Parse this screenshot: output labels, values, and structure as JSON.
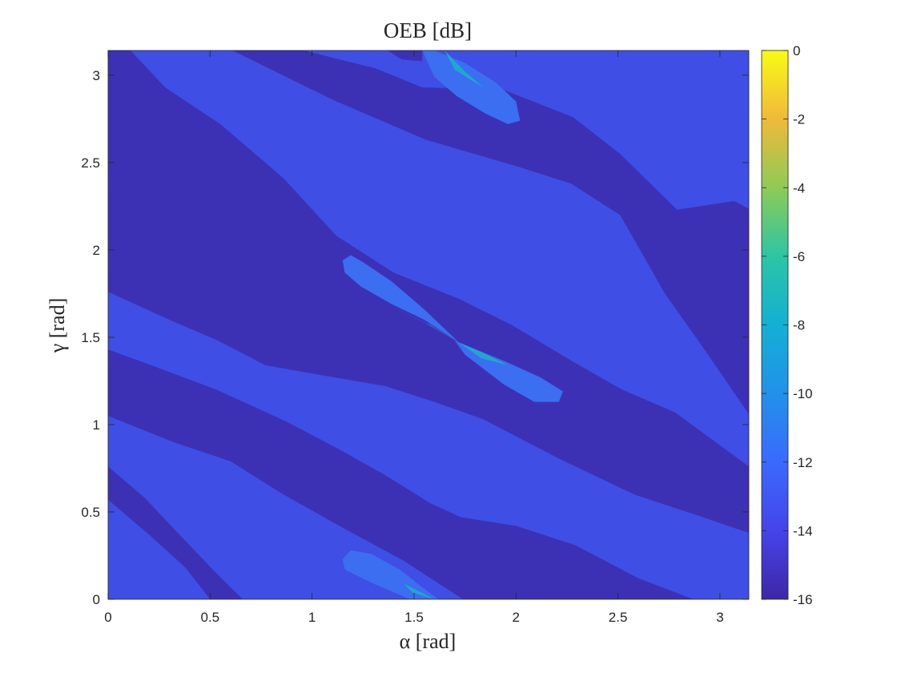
{
  "chart_data": {
    "type": "heatmap",
    "title": "OEB [dB]",
    "xlabel": "α [rad]",
    "ylabel": "γ [rad]",
    "xlim": [
      0,
      3.1416
    ],
    "ylim": [
      0,
      3.1416
    ],
    "x_ticks": [
      "0",
      "0.5",
      "1",
      "1.5",
      "2",
      "2.5",
      "3"
    ],
    "x_tick_values": [
      0,
      0.5,
      1,
      1.5,
      2,
      2.5,
      3
    ],
    "y_ticks": [
      "0",
      "0.5",
      "1",
      "1.5",
      "2",
      "2.5",
      "3"
    ],
    "y_tick_values": [
      0,
      0.5,
      1,
      1.5,
      2,
      2.5,
      3
    ],
    "colorbar": {
      "range": [
        -16,
        0
      ],
      "ticks": [
        "0",
        "-2",
        "-4",
        "-6",
        "-8",
        "-10",
        "-12",
        "-14",
        "-16"
      ],
      "tick_values": [
        0,
        -2,
        -4,
        -6,
        -8,
        -10,
        -12,
        -14,
        -16
      ],
      "colormap": "parula"
    },
    "levels": {
      "background": {
        "value": -15.8,
        "color": "#3c31b5"
      },
      "band": {
        "value": -13.8,
        "color": "#3f4ee4"
      },
      "lobe": {
        "value": -11.8,
        "color": "#3b6ef1"
      },
      "peak": {
        "value": -7.5,
        "color": "#1fa8ce"
      }
    },
    "regions": [
      {
        "level": "band",
        "points": [
          [
            0.11,
            3.1416
          ],
          [
            0.61,
            3.1416
          ],
          [
            1.1,
            2.86
          ],
          [
            1.56,
            2.63
          ],
          [
            2.0,
            2.48
          ],
          [
            2.27,
            2.38
          ],
          [
            2.51,
            2.2
          ],
          [
            2.73,
            1.75
          ],
          [
            2.93,
            1.42
          ],
          [
            3.1416,
            1.06
          ],
          [
            3.1416,
            0.76
          ],
          [
            2.78,
            1.07
          ],
          [
            2.52,
            1.2
          ],
          [
            2.28,
            1.36
          ],
          [
            1.98,
            1.57
          ],
          [
            1.72,
            1.72
          ],
          [
            1.4,
            1.87
          ],
          [
            1.12,
            2.08
          ],
          [
            0.86,
            2.41
          ],
          [
            0.55,
            2.72
          ],
          [
            0.28,
            2.93
          ]
        ]
      },
      {
        "level": "band",
        "points": [
          [
            0.96,
            3.1416
          ],
          [
            3.15,
            3.1416
          ],
          [
            3.15,
            2.23
          ],
          [
            3.07,
            2.28
          ],
          [
            2.79,
            2.23
          ],
          [
            2.51,
            2.55
          ],
          [
            2.28,
            2.76
          ],
          [
            1.93,
            2.92
          ],
          [
            1.54,
            2.93
          ],
          [
            1.31,
            3.04
          ]
        ]
      },
      {
        "level": "band",
        "points": [
          [
            0,
            1.43
          ],
          [
            0.21,
            1.34
          ],
          [
            0.53,
            1.2
          ],
          [
            0.87,
            1.02
          ],
          [
            1.13,
            0.86
          ],
          [
            1.36,
            0.71
          ],
          [
            1.58,
            0.55
          ],
          [
            1.73,
            0.47
          ],
          [
            2.0,
            0.42
          ],
          [
            2.29,
            0.31
          ],
          [
            2.6,
            0.12
          ],
          [
            2.87,
            0
          ],
          [
            3.1416,
            0
          ],
          [
            3.1416,
            0.38
          ],
          [
            2.89,
            0.48
          ],
          [
            2.58,
            0.6
          ],
          [
            2.22,
            0.8
          ],
          [
            1.84,
            1.03
          ],
          [
            1.6,
            1.13
          ],
          [
            1.36,
            1.22
          ],
          [
            1.06,
            1.28
          ],
          [
            0.77,
            1.34
          ],
          [
            0.54,
            1.48
          ],
          [
            0.3,
            1.6
          ],
          [
            0,
            1.76
          ]
        ]
      },
      {
        "level": "band",
        "points": [
          [
            0,
            0.76
          ],
          [
            0.18,
            0.58
          ],
          [
            0.35,
            0.37
          ],
          [
            0.53,
            0.15
          ],
          [
            0.66,
            0
          ],
          [
            1.74,
            0
          ],
          [
            1.45,
            0.22
          ],
          [
            1.15,
            0.41
          ],
          [
            0.86,
            0.6
          ],
          [
            0.6,
            0.79
          ],
          [
            0.32,
            0.9
          ],
          [
            0,
            1.05
          ]
        ]
      },
      {
        "level": "band",
        "points": [
          [
            0,
            0.57
          ],
          [
            0.21,
            0.36
          ],
          [
            0.38,
            0.18
          ],
          [
            0.5,
            0
          ],
          [
            0,
            0
          ]
        ]
      },
      {
        "level": "background",
        "points": [
          [
            1.37,
            3.1416
          ],
          [
            1.44,
            3.09
          ],
          [
            1.54,
            3.08
          ],
          [
            1.54,
            3.1416
          ]
        ]
      },
      {
        "level": "background",
        "points": [
          [
            1.69,
            1.66
          ],
          [
            1.66,
            1.64
          ],
          [
            1.61,
            1.56
          ],
          [
            1.63,
            1.52
          ],
          [
            1.69,
            1.47
          ],
          [
            1.74,
            1.48
          ],
          [
            1.79,
            1.53
          ],
          [
            1.77,
            1.61
          ]
        ]
      },
      {
        "level": "lobe",
        "points": [
          [
            1.6,
            3.1416
          ],
          [
            1.75,
            3.07
          ],
          [
            1.9,
            2.96
          ],
          [
            2.0,
            2.85
          ],
          [
            2.02,
            2.74
          ],
          [
            1.96,
            2.72
          ],
          [
            1.85,
            2.78
          ],
          [
            1.71,
            2.88
          ],
          [
            1.6,
            2.99
          ],
          [
            1.54,
            3.1416
          ]
        ]
      },
      {
        "level": "lobe",
        "points": [
          [
            1.15,
            1.94
          ],
          [
            1.19,
            1.97
          ],
          [
            1.25,
            1.93
          ],
          [
            1.39,
            1.82
          ],
          [
            1.55,
            1.66
          ],
          [
            1.72,
            1.47
          ],
          [
            1.55,
            1.6
          ],
          [
            1.39,
            1.69
          ],
          [
            1.24,
            1.79
          ],
          [
            1.16,
            1.87
          ]
        ]
      },
      {
        "level": "lobe",
        "points": [
          [
            1.7,
            1.48
          ],
          [
            1.95,
            1.36
          ],
          [
            2.12,
            1.27
          ],
          [
            2.23,
            1.19
          ],
          [
            2.21,
            1.13
          ],
          [
            2.09,
            1.13
          ],
          [
            1.94,
            1.23
          ],
          [
            1.75,
            1.4
          ]
        ]
      },
      {
        "level": "lobe",
        "points": [
          [
            1.15,
            0.23
          ],
          [
            1.19,
            0.28
          ],
          [
            1.29,
            0.26
          ],
          [
            1.43,
            0.17
          ],
          [
            1.55,
            0.06
          ],
          [
            1.62,
            0
          ],
          [
            1.48,
            0
          ],
          [
            1.3,
            0.09
          ],
          [
            1.16,
            0.17
          ]
        ]
      },
      {
        "level": "peak",
        "points": [
          [
            1.4,
            1.67
          ],
          [
            1.58,
            1.57
          ],
          [
            1.72,
            1.47
          ],
          [
            1.56,
            1.58
          ]
        ]
      },
      {
        "level": "peak",
        "points": [
          [
            1.72,
            1.47
          ],
          [
            1.84,
            1.41
          ],
          [
            1.96,
            1.34
          ],
          [
            1.83,
            1.38
          ]
        ]
      },
      {
        "level": "peak",
        "points": [
          [
            1.65,
            3.1416
          ],
          [
            1.75,
            3.02
          ],
          [
            1.84,
            2.93
          ],
          [
            1.7,
            3.03
          ]
        ]
      },
      {
        "level": "peak",
        "points": [
          [
            1.45,
            0.09
          ],
          [
            1.55,
            0.03
          ],
          [
            1.6,
            0
          ],
          [
            1.49,
            0.04
          ]
        ]
      }
    ]
  }
}
